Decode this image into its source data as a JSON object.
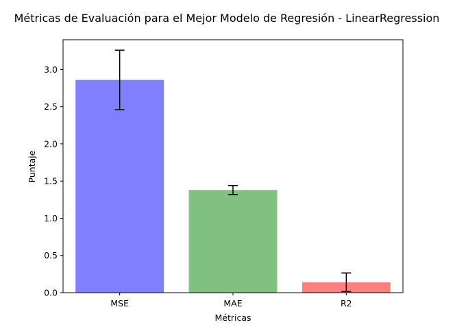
{
  "chart_data": {
    "type": "bar",
    "title": "Métricas de Evaluación para el Mejor Modelo de Regresión - LinearRegression",
    "xlabel": "Métricas",
    "ylabel": "Puntaje",
    "categories": [
      "MSE",
      "MAE",
      "R2"
    ],
    "values": [
      2.86,
      1.38,
      0.14
    ],
    "error": [
      0.4,
      0.06,
      0.125
    ],
    "colors": [
      "#8080ff",
      "#80c080",
      "#ff8080"
    ],
    "ylim": [
      0,
      3.4
    ],
    "yticks": [
      "0.0",
      "0.5",
      "1.0",
      "1.5",
      "2.0",
      "2.5",
      "3.0"
    ],
    "grid": false,
    "error_bar_color": "#000000"
  }
}
